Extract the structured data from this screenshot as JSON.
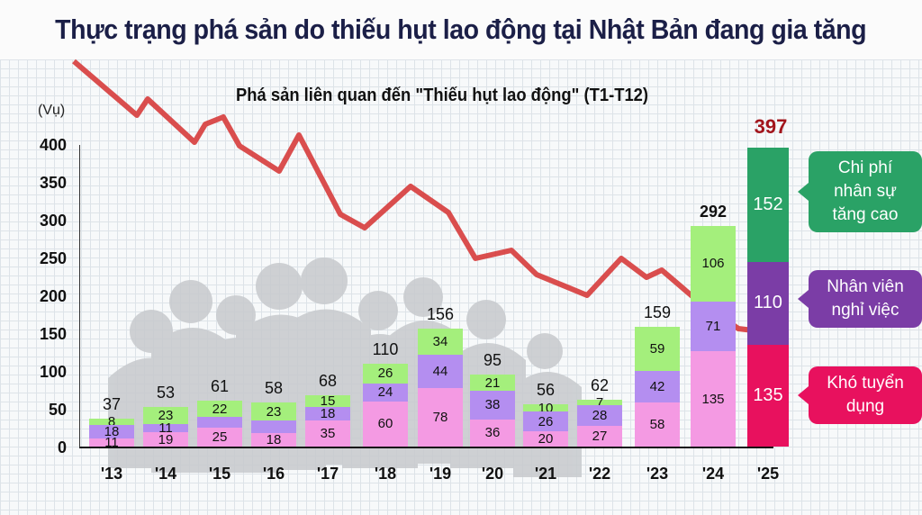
{
  "title": "Thực trạng phá sản do thiếu hụt lao động tại Nhật Bản đang gia tăng",
  "subtitle": "Phá sản liên quan đến \"Thiếu hụt lao động\" (T1-T12)",
  "unit": "(Vụ)",
  "yticks": [
    "400",
    "350",
    "300",
    "250",
    "200",
    "150",
    "100",
    "50",
    "0"
  ],
  "colors": {
    "kho_tuyen_dung": "#f49ae3",
    "nhan_vien_nghi_viec": "#b48ef0",
    "chi_phi_nhan_su": "#a4ef7c",
    "kho_tuyen_dung_2025": "#e8115e",
    "nhan_vien_nghi_viec_2025": "#7b3da6",
    "chi_phi_nhan_su_2025": "#2aa266",
    "trend_line": "#d63b3b",
    "title": "#1b1f47",
    "total_2025": "#a2151c"
  },
  "callouts": [
    {
      "label_line1": "Chi phí",
      "label_line2": "nhân sự",
      "label_line3": "tăng cao"
    },
    {
      "label_line1": "Nhân viên",
      "label_line2": "nghỉ việc"
    },
    {
      "label_line1": "Khó tuyển",
      "label_line2": "dụng"
    }
  ],
  "chart_data": {
    "type": "bar",
    "stacked": true,
    "title": "Phá sản liên quan đến \"Thiếu hụt lao động\" (T1-T12)",
    "xlabel": "",
    "ylabel": "(Vụ)",
    "ylim": [
      0,
      400
    ],
    "yticks": [
      0,
      50,
      100,
      150,
      200,
      250,
      300,
      350,
      400
    ],
    "categories": [
      "'13",
      "'14",
      "'15",
      "'16",
      "'17",
      "'18",
      "'19",
      "'20",
      "'21",
      "'22",
      "'23",
      "'24",
      "'25"
    ],
    "series": [
      {
        "name": "Khó tuyển dụng",
        "values": [
          11,
          19,
          25,
          18,
          35,
          60,
          78,
          36,
          20,
          27,
          58,
          135,
          135
        ]
      },
      {
        "name": "Nhân viên nghỉ việc",
        "values": [
          18,
          11,
          14,
          17,
          18,
          24,
          44,
          38,
          26,
          28,
          42,
          71,
          110
        ]
      },
      {
        "name": "Chi phí nhân sự tăng cao",
        "values": [
          8,
          23,
          22,
          23,
          15,
          26,
          34,
          21,
          10,
          7,
          59,
          106,
          152
        ]
      }
    ],
    "totals": [
      37,
      53,
      61,
      58,
      68,
      110,
      156,
      95,
      56,
      62,
      159,
      292,
      397
    ],
    "segment_labels_shown": [
      [
        "11",
        "18",
        "8"
      ],
      [
        "19",
        "11",
        "23"
      ],
      [
        "25",
        "",
        "22"
      ],
      [
        "18",
        "",
        "23"
      ],
      [
        "35",
        "18",
        "15"
      ],
      [
        "60",
        "24",
        "26"
      ],
      [
        "78",
        "44",
        "34"
      ],
      [
        "36",
        "38",
        "21"
      ],
      [
        "20",
        "26",
        "10"
      ],
      [
        "27",
        "28",
        "7"
      ],
      [
        "58",
        "42",
        "59"
      ],
      [
        "135",
        "71",
        "106"
      ],
      [
        "135",
        "110",
        "152"
      ]
    ],
    "legend": [
      "Chi phí nhân sự tăng cao",
      "Nhân viên nghỉ việc",
      "Khó tuyển dụng"
    ],
    "legend_position": "right (callouts on 2025 bar)",
    "grid": true,
    "decoration": "descending red trend line (background illustration, no values)"
  }
}
